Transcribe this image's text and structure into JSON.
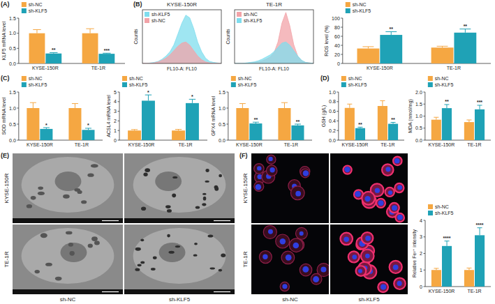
{
  "chart_data": [
    {
      "type": "bar",
      "panel": "(A)",
      "y_label": "KLF5 mRNA level",
      "categories": [
        "KYSE-150R",
        "TE-1R"
      ],
      "series": [
        {
          "name": "sh-NC",
          "color": "#F5A742",
          "values": [
            1.0,
            1.0
          ],
          "errors": [
            0.12,
            0.15
          ]
        },
        {
          "name": "sh-KLF5",
          "color": "#1FA2B6",
          "values": [
            0.33,
            0.32
          ],
          "errors": [
            0.03,
            0.02
          ],
          "significance": [
            "**",
            "***"
          ]
        }
      ],
      "ylim": [
        0,
        1.5
      ],
      "yticks": [
        {
          "value": 0,
          "label": "0.0"
        },
        0.5,
        {
          "value": 1,
          "label": "1.0"
        },
        1.5
      ],
      "legend": "top-left"
    },
    {
      "type": "area",
      "panel": "(B)",
      "title": "KYSE-150R",
      "x_label": "FL10-A: FL10",
      "y_label": "Counts",
      "x": [
        0,
        1,
        2,
        3,
        4,
        5,
        6,
        7,
        8,
        9,
        10,
        11,
        12,
        13,
        14,
        15,
        16,
        17,
        18,
        19,
        20
      ],
      "series": [
        {
          "name": "sh-KLF5",
          "color": "#7FDDEE",
          "values": [
            0,
            0,
            1,
            2,
            4,
            8,
            14,
            22,
            35,
            55,
            75,
            90,
            85,
            65,
            40,
            22,
            10,
            4,
            2,
            1,
            0
          ]
        },
        {
          "name": "sh-NC",
          "color": "#F2A3A8",
          "values": [
            0,
            0,
            0,
            1,
            3,
            6,
            10,
            16,
            24,
            32,
            38,
            40,
            34,
            24,
            14,
            7,
            3,
            1,
            0,
            0,
            0
          ]
        }
      ],
      "xlim": [
        0,
        20
      ],
      "ylim": [
        0,
        100
      ],
      "tick_labels": false,
      "legend": "top-left"
    },
    {
      "type": "area",
      "title": "TE-1R",
      "x_label": "FL10-A: FL10",
      "y_label": "Counts",
      "x": [
        0,
        1,
        2,
        3,
        4,
        5,
        6,
        7,
        8,
        9,
        10,
        11,
        12,
        13,
        14,
        15,
        16,
        17,
        18,
        19,
        20
      ],
      "series": [
        {
          "name": "sh-NC",
          "color": "#F2A3A8",
          "values": [
            0,
            0,
            0,
            0,
            1,
            2,
            3,
            5,
            8,
            12,
            20,
            40,
            75,
            95,
            70,
            35,
            14,
            5,
            2,
            1,
            0
          ]
        },
        {
          "name": "sh-KLF5",
          "color": "#7FDDEE",
          "values": [
            0,
            0,
            0,
            1,
            2,
            3,
            5,
            8,
            12,
            16,
            22,
            30,
            38,
            40,
            34,
            24,
            14,
            6,
            2,
            1,
            0
          ]
        }
      ],
      "xlim": [
        0,
        20
      ],
      "ylim": [
        0,
        100
      ],
      "tick_labels": false,
      "legend": "top-left"
    },
    {
      "type": "bar",
      "y_label": "ROS level (%)",
      "categories": [
        "KYSE-150R",
        "TE-1R"
      ],
      "series": [
        {
          "name": "sh-NC",
          "color": "#F5A742",
          "values": [
            33,
            35
          ],
          "errors": [
            4,
            3
          ]
        },
        {
          "name": "sh-KLF5",
          "color": "#1FA2B6",
          "values": [
            63,
            68
          ],
          "errors": [
            7,
            8
          ],
          "significance": [
            "**",
            "**"
          ]
        }
      ],
      "ylim": [
        0,
        100
      ],
      "yticks": [
        0,
        20,
        40,
        60,
        80,
        100
      ],
      "legend": "top-left"
    },
    {
      "type": "bar",
      "panel": "(C)",
      "y_label": "SOD mRNA level",
      "categories": [
        "KYSE-150R",
        "TE-1R"
      ],
      "series": [
        {
          "name": "sh-NC",
          "color": "#F5A742",
          "values": [
            1.0,
            1.0
          ],
          "errors": [
            0.17,
            0.14
          ]
        },
        {
          "name": "sh-KLF5",
          "color": "#1FA2B6",
          "values": [
            0.35,
            0.32
          ],
          "errors": [
            0.04,
            0.05
          ],
          "significance": [
            "*",
            "*"
          ]
        }
      ],
      "ylim": [
        0,
        1.5
      ],
      "yticks": [
        {
          "value": 0,
          "label": "0.0"
        },
        0.5,
        {
          "value": 1,
          "label": "1.0"
        },
        1.5
      ],
      "legend": "top-left"
    },
    {
      "type": "bar",
      "y_label": "ACSL4 mRNA level",
      "categories": [
        "KYSE-150R",
        "TE-1R"
      ],
      "series": [
        {
          "name": "sh-NC",
          "color": "#F5A742",
          "values": [
            1.0,
            1.0
          ],
          "errors": [
            0.1,
            0.12
          ]
        },
        {
          "name": "sh-KLF5",
          "color": "#1FA2B6",
          "values": [
            4.1,
            3.85
          ],
          "errors": [
            0.6,
            0.4
          ],
          "significance": [
            "*",
            "*"
          ]
        }
      ],
      "ylim": [
        0,
        5
      ],
      "yticks": [
        0,
        1,
        2,
        3,
        4,
        5
      ],
      "legend": "top-left"
    },
    {
      "type": "bar",
      "y_label": "GPX4 mRNA level",
      "categories": [
        "KYSE-150R",
        "TE-1R"
      ],
      "series": [
        {
          "name": "sh-NC",
          "color": "#F5A742",
          "values": [
            1.0,
            1.0
          ],
          "errors": [
            0.14,
            0.17
          ]
        },
        {
          "name": "sh-KLF5",
          "color": "#1FA2B6",
          "values": [
            0.52,
            0.46
          ],
          "errors": [
            0.04,
            0.04
          ],
          "significance": [
            "**",
            "**"
          ]
        }
      ],
      "ylim": [
        0,
        1.5
      ],
      "yticks": [
        {
          "value": 0,
          "label": "0.0"
        },
        0.5,
        {
          "value": 1,
          "label": "1.0"
        },
        1.5
      ],
      "legend": "top-left"
    },
    {
      "type": "bar",
      "panel": "(D)",
      "y_label": "GSH (g/L)",
      "categories": [
        "KYSE-150R",
        "TE-1R"
      ],
      "series": [
        {
          "name": "sh-NC",
          "color": "#F5A742",
          "values": [
            0.67,
            0.71
          ],
          "errors": [
            0.08,
            0.11
          ]
        },
        {
          "name": "sh-KLF5",
          "color": "#1FA2B6",
          "values": [
            0.25,
            0.34
          ],
          "errors": [
            0.02,
            0.03
          ],
          "significance": [
            "**",
            "**"
          ]
        }
      ],
      "ylim": [
        0,
        1.0
      ],
      "yticks": [
        {
          "value": 0,
          "label": "0.0"
        },
        0.2,
        0.4,
        0.6,
        0.8,
        {
          "value": 1,
          "label": "1.0"
        }
      ],
      "legend": "top-left"
    },
    {
      "type": "bar",
      "y_label": "MDA (nmol/mg)",
      "categories": [
        "KYSE-150R",
        "TE-1R"
      ],
      "series": [
        {
          "name": "sh-NC",
          "color": "#F5A742",
          "values": [
            0.85,
            0.75
          ],
          "errors": [
            0.1,
            0.09
          ]
        },
        {
          "name": "sh-KLF5",
          "color": "#1FA2B6",
          "values": [
            1.33,
            1.28
          ],
          "errors": [
            0.15,
            0.17
          ],
          "significance": [
            "**",
            "***"
          ]
        }
      ],
      "ylim": [
        0,
        2.0
      ],
      "yticks": [
        {
          "value": 0,
          "label": "0.0"
        },
        0.5,
        {
          "value": 1,
          "label": "1.0"
        },
        1.5,
        {
          "value": 2,
          "label": "2.0"
        }
      ],
      "legend": "top-left"
    },
    {
      "type": "bar",
      "y_label": "Relative Fe²⁺ intensity",
      "categories": [
        "KYSE-150R",
        "TE-1R"
      ],
      "series": [
        {
          "name": "sh-NC",
          "color": "#F5A742",
          "values": [
            1.0,
            1.0
          ],
          "errors": [
            0.1,
            0.12
          ]
        },
        {
          "name": "sh-KLF5",
          "color": "#1FA2B6",
          "values": [
            2.45,
            3.1
          ],
          "errors": [
            0.3,
            0.45
          ],
          "significance": [
            "****",
            "****"
          ]
        }
      ],
      "ylim": [
        0,
        4
      ],
      "yticks": [
        0,
        1,
        2,
        3,
        4
      ],
      "legend": "top-left"
    }
  ],
  "images": [
    {
      "panel": "(E)",
      "kind": "tem",
      "rows": [
        "KYSE-150R",
        "TE-1R"
      ],
      "columns": [
        "sh-NC",
        "sh-KLF5"
      ]
    },
    {
      "panel": "(F)",
      "kind": "fluorescence",
      "rows": [
        "KYSE-150R",
        "TE-1R"
      ],
      "columns": [
        "sh-NC",
        "sh-KLF5"
      ]
    }
  ]
}
